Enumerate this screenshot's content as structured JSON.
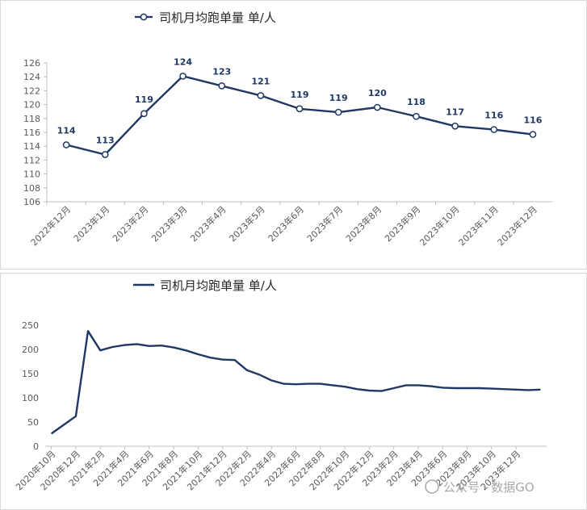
{
  "chart_data": [
    {
      "type": "line",
      "legend": "司机月均跑单量 单/人",
      "legend_position": "top",
      "categories": [
        "2022年12月",
        "2023年1月",
        "2023年2月",
        "2023年3月",
        "2023年4月",
        "2023年5月",
        "2023年6月",
        "2023年7月",
        "2023年8月",
        "2023年9月",
        "2023年10月",
        "2023年11月",
        "2023年12月"
      ],
      "series": [
        {
          "name": "司机月均跑单量 单/人",
          "values": [
            114.2,
            112.8,
            118.7,
            124.1,
            122.7,
            121.3,
            119.4,
            118.9,
            119.6,
            118.3,
            116.9,
            116.4,
            115.7
          ]
        }
      ],
      "data_labels": [
        "114",
        "113",
        "119",
        "124",
        "123",
        "121",
        "119",
        "119",
        "120",
        "118",
        "117",
        "116",
        "116"
      ],
      "ylim": [
        106,
        126
      ],
      "yticks": [
        106,
        108,
        110,
        112,
        114,
        116,
        118,
        120,
        122,
        124,
        126
      ],
      "markers": true,
      "grid": false,
      "color": "#1f3864"
    },
    {
      "type": "line",
      "legend": "司机月均跑单量 单/人",
      "legend_position": "top",
      "tick_labels": [
        "2020年10月",
        "2020年12月",
        "2021年2月",
        "2021年4月",
        "2021年6月",
        "2021年8月",
        "2021年10月",
        "2021年12月",
        "2022年2月",
        "2022年4月",
        "2022年6月",
        "2022年8月",
        "2022年10月",
        "2022年12月",
        "2023年2月",
        "2023年4月",
        "2023年6月",
        "2023年8月",
        "2023年10月",
        "2023年12月"
      ],
      "series": [
        {
          "name": "司机月均跑单量 单/人",
          "values": [
            26,
            44,
            62,
            238,
            198,
            205,
            209,
            211,
            207,
            208,
            204,
            198,
            190,
            183,
            179,
            178,
            157,
            148,
            136,
            129,
            128,
            129,
            129,
            126,
            123,
            118,
            115,
            114,
            120,
            126,
            126,
            124,
            121,
            120,
            120,
            120,
            119,
            118,
            117,
            116,
            117
          ]
        }
      ],
      "ylim": [
        0,
        250
      ],
      "yticks": [
        0,
        50,
        100,
        150,
        200,
        250
      ],
      "markers": false,
      "grid": false,
      "color": "#1f3864"
    }
  ],
  "watermark": "公众号 · 数据GO"
}
